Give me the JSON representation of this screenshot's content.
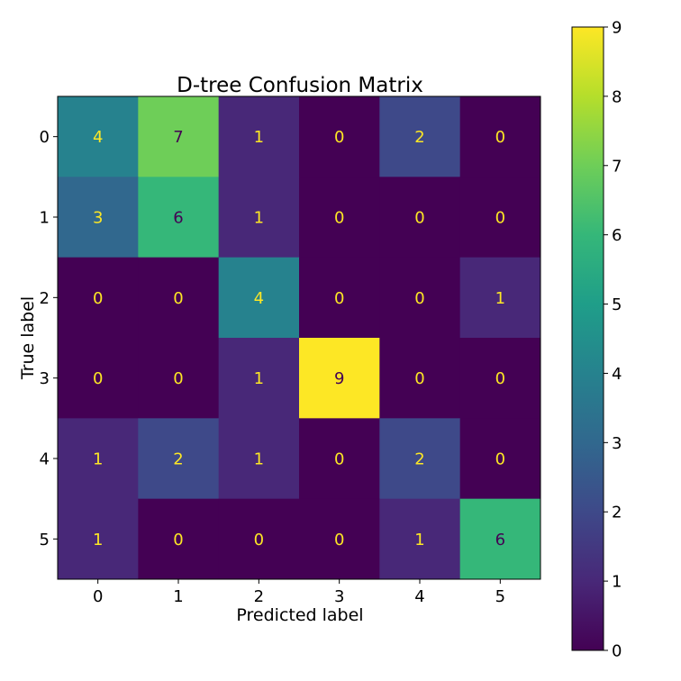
{
  "chart_data": {
    "type": "heatmap",
    "title": "D-tree Confusion Matrix",
    "xlabel": "Predicted label",
    "ylabel": "True label",
    "x_categories": [
      "0",
      "1",
      "2",
      "3",
      "4",
      "5"
    ],
    "y_categories": [
      "0",
      "1",
      "2",
      "3",
      "4",
      "5"
    ],
    "values": [
      [
        4,
        7,
        1,
        0,
        2,
        0
      ],
      [
        3,
        6,
        1,
        0,
        0,
        0
      ],
      [
        0,
        0,
        4,
        0,
        0,
        1
      ],
      [
        0,
        0,
        1,
        9,
        0,
        0
      ],
      [
        1,
        2,
        1,
        0,
        2,
        0
      ],
      [
        1,
        0,
        0,
        0,
        1,
        6
      ]
    ],
    "colormap": "viridis",
    "value_range": [
      0,
      9
    ],
    "colorbar_ticks": [
      0,
      1,
      2,
      3,
      4,
      5,
      6,
      7,
      8,
      9
    ],
    "text_color_low": "#fde725",
    "text_color_high": "#440154",
    "grid": false,
    "legend": "colorbar-right"
  }
}
